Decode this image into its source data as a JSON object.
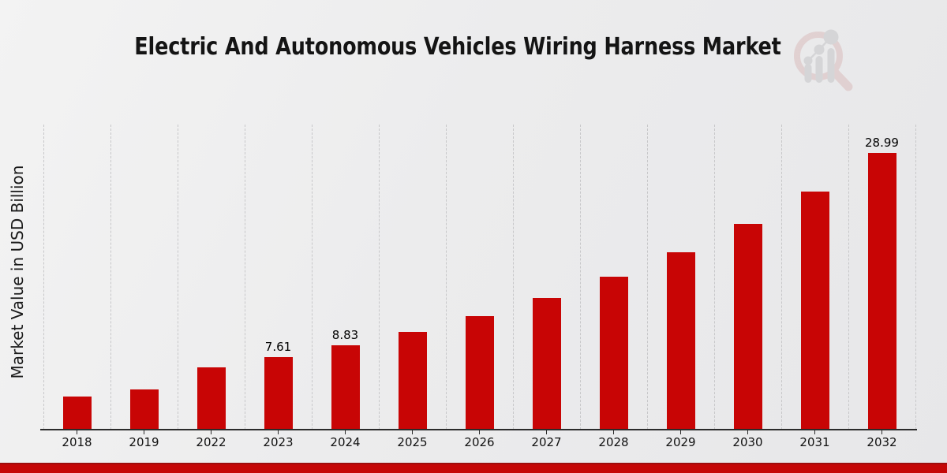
{
  "page": {
    "background_top": "#f3f3f3",
    "background_bottom": "#e7e7e9",
    "footer_bar_color": "#c50606",
    "footer_bar_edge_color": "#9e0c0c"
  },
  "header": {
    "title": "Electric And Autonomous Vehicles Wiring Harness Market",
    "logo_icon": "magnifier-bar-chart-logo",
    "logo_accent_color": "#d9b9b9",
    "logo_gray_color": "#c2c2c4"
  },
  "chart_data": {
    "type": "bar",
    "title": "Electric And Autonomous Vehicles Wiring Harness Market",
    "xlabel": "",
    "ylabel": "Market Value in USD Billion",
    "categories": [
      "2018",
      "2019",
      "2022",
      "2023",
      "2024",
      "2025",
      "2026",
      "2027",
      "2028",
      "2029",
      "2030",
      "2031",
      "2032"
    ],
    "values": [
      3.45,
      4.25,
      6.56,
      7.61,
      8.83,
      10.25,
      11.89,
      13.8,
      16.01,
      18.58,
      21.55,
      25.01,
      28.99
    ],
    "data_labels": [
      "",
      "",
      "",
      "7.61",
      "8.83",
      "",
      "",
      "",
      "",
      "",
      "",
      "",
      "28.99"
    ],
    "bar_color": "#c80505",
    "grid_color": "#c7c7c9",
    "axis_color": "#2b2b2b",
    "text_color": "#111111",
    "ylim": [
      0,
      32
    ],
    "grid": "vertical dashed lines at category boundaries",
    "legend": "none"
  }
}
